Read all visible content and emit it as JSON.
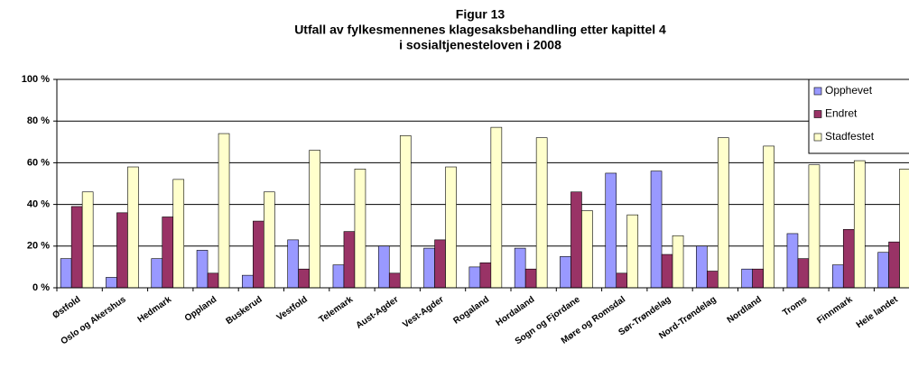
{
  "chart_data": {
    "type": "bar",
    "title": [
      "Figur 13",
      "Utfall av fylkesmennenes klagesaksbehandling etter kapittel 4",
      "i sosialtjenesteloven i 2008"
    ],
    "categories": [
      "Østfold",
      "Oslo og Akershus",
      "Hedmark",
      "Oppland",
      "Buskerud",
      "Vestfold",
      "Telemark",
      "Aust-Agder",
      "Vest-Agder",
      "Rogaland",
      "Hordaland",
      "Sogn og Fjordane",
      "Møre og Romsdal",
      "Sør-Trøndelag",
      "Nord-Trøndelag",
      "Nordland",
      "Troms",
      "Finnmark",
      "Hele landet"
    ],
    "series": [
      {
        "name": "Opphevet",
        "color": "#9999ff",
        "values": [
          14,
          5,
          14,
          18,
          6,
          23,
          11,
          20,
          19,
          10,
          19,
          15,
          55,
          56,
          20,
          9,
          26,
          11,
          17
        ]
      },
      {
        "name": "Endret",
        "color": "#993366",
        "values": [
          39,
          36,
          34,
          7,
          32,
          9,
          27,
          7,
          23,
          12,
          9,
          46,
          7,
          16,
          8,
          9,
          14,
          28,
          22
        ]
      },
      {
        "name": "Stadfestet",
        "color": "#ffffcc",
        "values": [
          46,
          58,
          52,
          74,
          46,
          66,
          57,
          73,
          58,
          77,
          72,
          37,
          35,
          25,
          72,
          68,
          59,
          61,
          57
        ]
      }
    ],
    "ylim": [
      0,
      100
    ],
    "yticks": [
      {
        "value": 0,
        "label": "0 %"
      },
      {
        "value": 20,
        "label": "20 %"
      },
      {
        "value": 40,
        "label": "40 %"
      },
      {
        "value": 60,
        "label": "60 %"
      },
      {
        "value": 80,
        "label": "80 %"
      },
      {
        "value": 100,
        "label": "100 %"
      }
    ],
    "grid": true,
    "legend": "right"
  }
}
